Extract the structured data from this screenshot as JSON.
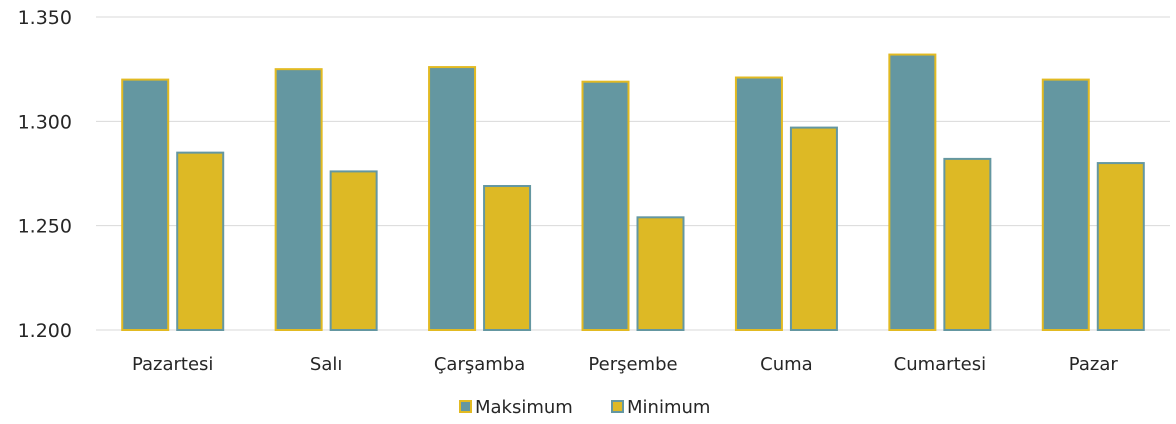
{
  "chart_data": {
    "type": "bar",
    "categories": [
      "Pazartesi",
      "Salı",
      "Çarşamba",
      "Perşembe",
      "Cuma",
      "Cumartesi",
      "Pazar"
    ],
    "series": [
      {
        "name": "Maksimum",
        "values": [
          1.32,
          1.325,
          1.326,
          1.319,
          1.321,
          1.332,
          1.32
        ],
        "color": "#6497a1",
        "border": "#e2ba22"
      },
      {
        "name": "Minimum",
        "values": [
          1.285,
          1.276,
          1.269,
          1.254,
          1.297,
          1.282,
          1.28
        ],
        "color": "#ddb925",
        "border": "#6497a1"
      }
    ],
    "ylim": [
      1.2,
      1.35
    ],
    "yticks": [
      1.2,
      1.25,
      1.3,
      1.35
    ],
    "ytick_labels": [
      "1.200",
      "1.250",
      "1.300",
      "1.350"
    ],
    "grid": true,
    "legend": "bottom",
    "title": "",
    "xlabel": "",
    "ylabel": ""
  }
}
